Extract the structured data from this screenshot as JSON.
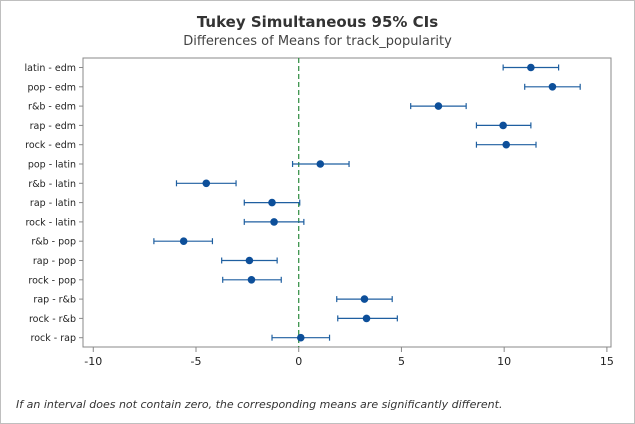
{
  "chart_data": {
    "type": "interval",
    "title": "Tukey Simultaneous 95% CIs",
    "subtitle": "Differences of Means for track_popularity",
    "categories": [
      "latin - edm",
      "pop - edm",
      "r&b - edm",
      "rap - edm",
      "rock - edm",
      "pop - latin",
      "r&b - latin",
      "rap - latin",
      "rock - latin",
      "r&b - pop",
      "rap - pop",
      "rock - pop",
      "rap - r&b",
      "rock - r&b",
      "rock - rap"
    ],
    "estimates": [
      11.3,
      12.35,
      6.8,
      9.95,
      10.1,
      1.05,
      -4.5,
      -1.3,
      -1.2,
      -5.6,
      -2.4,
      -2.3,
      3.2,
      3.3,
      0.1
    ],
    "lower": [
      9.95,
      11.0,
      5.45,
      8.65,
      8.65,
      -0.3,
      -5.95,
      -2.65,
      -2.65,
      -7.05,
      -3.75,
      -3.7,
      1.85,
      1.9,
      -1.3
    ],
    "upper": [
      12.65,
      13.7,
      8.15,
      11.3,
      11.55,
      2.45,
      -3.05,
      0.05,
      0.25,
      -4.2,
      -1.05,
      -0.85,
      4.55,
      4.8,
      1.5
    ],
    "xticks": [
      -10,
      -5,
      0,
      5,
      10,
      15
    ],
    "xlim": [
      -10.5,
      15.2
    ],
    "reference_line": 0,
    "grid": false,
    "colors": {
      "interval": "#1f5fa0",
      "point": "#0d4f9a",
      "reference": "#2b8a3e",
      "axis": "#888888"
    }
  },
  "footnote": "If an interval does not contain zero, the corresponding means are significantly different."
}
